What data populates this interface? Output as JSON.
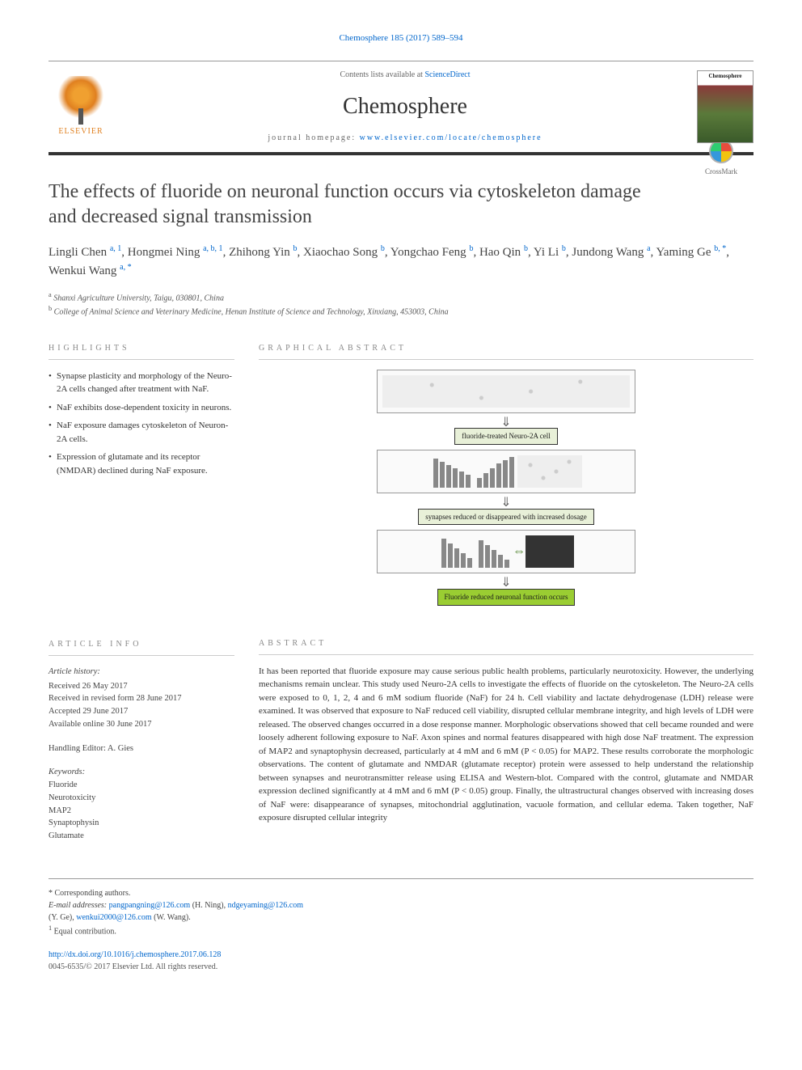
{
  "citation": "Chemosphere 185 (2017) 589–594",
  "header": {
    "contents_prefix": "Contents lists available at ",
    "contents_link": "ScienceDirect",
    "journal": "Chemosphere",
    "homepage_prefix": "journal homepage: ",
    "homepage_link": "www.elsevier.com/locate/chemosphere",
    "publisher": "ELSEVIER",
    "cover_title": "Chemosphere"
  },
  "crossmark": "CrossMark",
  "title": "The effects of fluoride on neuronal function occurs via cytoskeleton damage and decreased signal transmission",
  "authors_html": "Lingli Chen <sup>a, 1</sup>, Hongmei Ning <sup>a, b, 1</sup>, Zhihong Yin <sup>b</sup>, Xiaochao Song <sup>b</sup>, Yongchao Feng <sup>b</sup>, Hao Qin <sup>b</sup>, Yi Li <sup>b</sup>, Jundong Wang <sup>a</sup>, Yaming Ge <sup>b, *</sup>, Wenkui Wang <sup>a, *</sup>",
  "affiliations": {
    "a": "Shanxi Agriculture University, Taigu, 030801, China",
    "b": "College of Animal Science and Veterinary Medicine, Henan Institute of Science and Technology, Xinxiang, 453003, China"
  },
  "section_labels": {
    "highlights": "HIGHLIGHTS",
    "graphical": "GRAPHICAL ABSTRACT",
    "info": "ARTICLE INFO",
    "abstract": "ABSTRACT"
  },
  "highlights": [
    "Synapse plasticity and morphology of the Neuro-2A cells changed after treatment with NaF.",
    "NaF exhibits dose-dependent toxicity in neurons.",
    "NaF exposure damages cytoskeleton of Neuron-2A cells.",
    "Expression of glutamate and its receptor (NMDAR) declined during NaF exposure."
  ],
  "graphical_abstract": {
    "label1": "fluoride-treated Neuro-2A cell",
    "label2": "synapses reduced or disappeared with increased dosage",
    "label3": "Fluoride reduced neuronal function occurs"
  },
  "article_info": {
    "history_label": "Article history:",
    "received": "Received 26 May 2017",
    "revised": "Received in revised form 28 June 2017",
    "accepted": "Accepted 29 June 2017",
    "online": "Available online 30 June 2017",
    "editor_label": "Handling Editor: A. Gies",
    "keywords_label": "Keywords:",
    "keywords": [
      "Fluoride",
      "Neurotoxicity",
      "MAP2",
      "Synaptophysin",
      "Glutamate"
    ]
  },
  "abstract": "It has been reported that fluoride exposure may cause serious public health problems, particularly neurotoxicity. However, the underlying mechanisms remain unclear. This study used Neuro-2A cells to investigate the effects of fluoride on the cytoskeleton. The Neuro-2A cells were exposed to 0, 1, 2, 4 and 6 mM sodium fluoride (NaF) for 24 h. Cell viability and lactate dehydrogenase (LDH) release were examined. It was observed that exposure to NaF reduced cell viability, disrupted cellular membrane integrity, and high levels of LDH were released. The observed changes occurred in a dose response manner. Morphologic observations showed that cell became rounded and were loosely adherent following exposure to NaF. Axon spines and normal features disappeared with high dose NaF treatment. The expression of MAP2 and synaptophysin decreased, particularly at 4 mM and 6 mM (P < 0.05) for MAP2. These results corroborate the morphologic observations. The content of glutamate and NMDAR (glutamate receptor) protein were assessed to help understand the relationship between synapses and neurotransmitter release using ELISA and Western-blot. Compared with the control, glutamate and NMDAR expression declined significantly at 4 mM and 6 mM (P < 0.05) group. Finally, the ultrastructural changes observed with increasing doses of NaF were: disappearance of synapses, mitochondrial agglutination, vacuole formation, and cellular edema. Taken together, NaF exposure disrupted cellular integrity",
  "footer": {
    "corr": "* Corresponding authors.",
    "emails_label": "E-mail addresses:",
    "email1": "pangpangning@126.com",
    "email1_name": "(H. Ning),",
    "email2": "ndgeyaming@126.com",
    "email2_name": "(Y. Ge),",
    "email3": "wenkui2000@126.com",
    "email3_name": "(W. Wang).",
    "equal": "Equal contribution.",
    "doi": "http://dx.doi.org/10.1016/j.chemosphere.2017.06.128",
    "copyright": "0045-6535/© 2017 Elsevier Ltd. All rights reserved."
  }
}
